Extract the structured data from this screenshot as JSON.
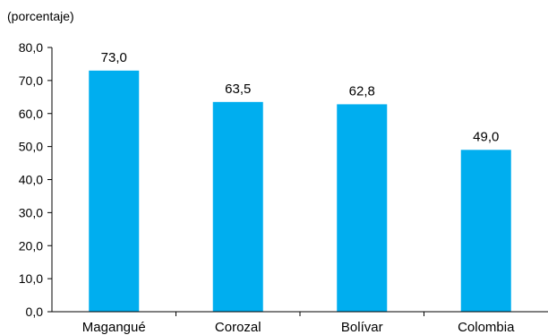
{
  "chart_data": {
    "type": "bar",
    "title": "",
    "unit_label": "(porcentaje)",
    "xlabel": "",
    "ylabel": "",
    "categories": [
      "Magangué",
      "Corozal",
      "Bolívar",
      "Colombia"
    ],
    "values": [
      73.0,
      63.5,
      62.8,
      49.0
    ],
    "value_labels": [
      "73,0",
      "63,5",
      "62,8",
      "49,0"
    ],
    "ylim": [
      0,
      80
    ],
    "yticks": [
      0,
      10,
      20,
      30,
      40,
      50,
      60,
      70,
      80
    ],
    "ytick_labels": [
      "0,0",
      "10,0",
      "20,0",
      "30,0",
      "40,0",
      "50,0",
      "60,0",
      "70,0",
      "80,0"
    ],
    "grid": false,
    "legend": "none",
    "bar_color": "#00aeef"
  }
}
